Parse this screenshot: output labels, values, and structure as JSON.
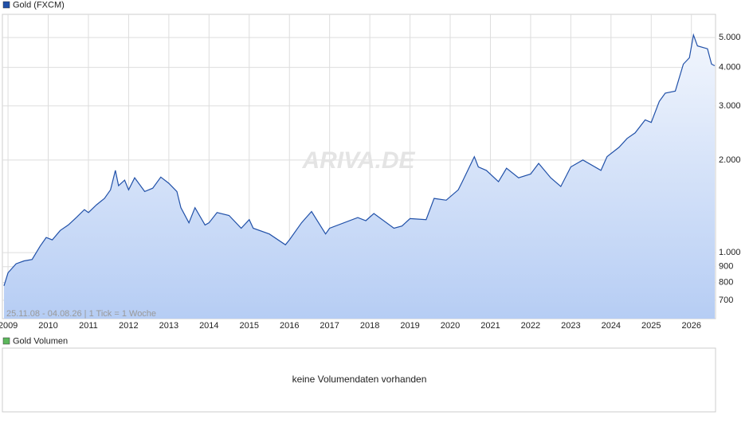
{
  "chart_data": {
    "type": "line",
    "series": [
      {
        "name": "Gold (FXCM)",
        "color": "#2050a8",
        "x": [
          2008.9,
          2009.0,
          2009.2,
          2009.4,
          2009.6,
          2009.8,
          2009.95,
          2010.1,
          2010.3,
          2010.5,
          2010.7,
          2010.9,
          2011.0,
          2011.2,
          2011.4,
          2011.55,
          2011.67,
          2011.75,
          2011.9,
          2012.0,
          2012.15,
          2012.4,
          2012.6,
          2012.8,
          2013.0,
          2013.2,
          2013.3,
          2013.5,
          2013.65,
          2013.9,
          2014.0,
          2014.2,
          2014.5,
          2014.8,
          2015.0,
          2015.1,
          2015.5,
          2015.9,
          2016.0,
          2016.3,
          2016.55,
          2016.9,
          2017.0,
          2017.7,
          2017.9,
          2018.1,
          2018.6,
          2018.8,
          2019.0,
          2019.4,
          2019.6,
          2019.9,
          2020.2,
          2020.3,
          2020.6,
          2020.7,
          2020.9,
          2021.2,
          2021.4,
          2021.7,
          2022.0,
          2022.2,
          2022.5,
          2022.75,
          2023.0,
          2023.3,
          2023.75,
          2023.9,
          2024.2,
          2024.4,
          2024.6,
          2024.85,
          2025.0,
          2025.2,
          2025.35,
          2025.6,
          2025.8,
          2025.95,
          2026.05,
          2026.15,
          2026.4,
          2026.5,
          2026.58
        ],
        "values": [
          780,
          860,
          920,
          940,
          950,
          1050,
          1120,
          1100,
          1180,
          1230,
          1300,
          1380,
          1350,
          1430,
          1500,
          1600,
          1850,
          1650,
          1720,
          1600,
          1750,
          1580,
          1620,
          1760,
          1680,
          1580,
          1400,
          1250,
          1400,
          1230,
          1250,
          1350,
          1320,
          1200,
          1280,
          1200,
          1150,
          1060,
          1100,
          1250,
          1360,
          1150,
          1200,
          1300,
          1270,
          1340,
          1200,
          1220,
          1290,
          1280,
          1500,
          1480,
          1600,
          1700,
          2050,
          1900,
          1850,
          1700,
          1880,
          1750,
          1800,
          1950,
          1750,
          1640,
          1900,
          2000,
          1850,
          2050,
          2200,
          2350,
          2450,
          2700,
          2650,
          3100,
          3300,
          3350,
          4100,
          4300,
          5100,
          4700,
          4600,
          4100,
          4050
        ]
      }
    ],
    "xlim": [
      2008.86,
      2026.6
    ],
    "xticks": [
      2009,
      2010,
      2011,
      2012,
      2013,
      2014,
      2015,
      2016,
      2017,
      2018,
      2019,
      2020,
      2021,
      2022,
      2023,
      2024,
      2025,
      2026
    ],
    "ylim": [
      610,
      5950
    ],
    "yticks": [
      700,
      800,
      900,
      {
        "value": 1000,
        "label": "1.000"
      },
      {
        "value": 2000,
        "label": "2.000"
      },
      {
        "value": 3000,
        "label": "3.000"
      },
      {
        "value": 4000,
        "label": "4.000"
      },
      {
        "value": 5000,
        "label": "5.000"
      }
    ],
    "log_scale": true,
    "grid": true,
    "annotation": "25.11.08 - 04.08.26 | 1 Tick = 1 Woche",
    "watermark": "ARIVA.DE"
  },
  "volume_panel": {
    "title": "Gold Volumen",
    "color": "#5cb85c",
    "message": "keine Volumendaten vorhanden"
  }
}
